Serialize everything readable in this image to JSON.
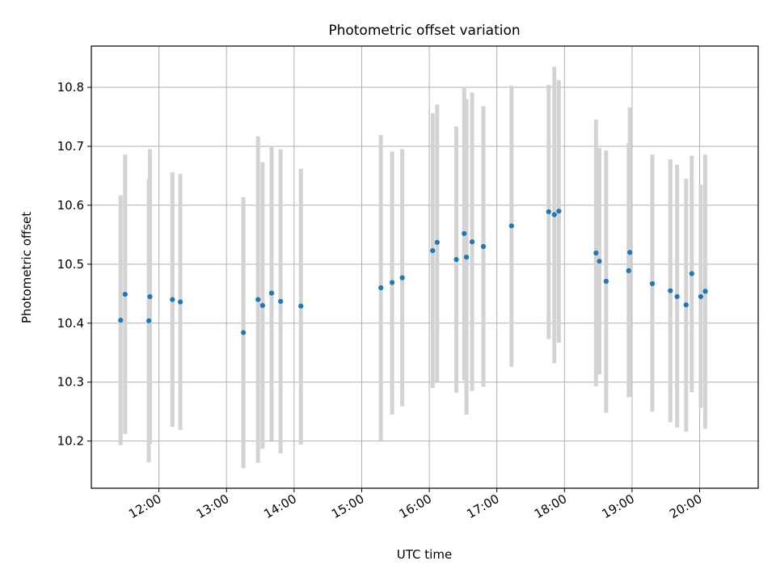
{
  "chart_data": {
    "type": "scatter",
    "title": "Photometric offset variation",
    "xlabel": "UTC time",
    "ylabel": "Photometric offset",
    "xlim": [
      "11:00",
      "20:52"
    ],
    "ylim": [
      10.12,
      10.87
    ],
    "grid": true,
    "colors": {
      "marker": "#1f77b4",
      "errorbar": "#d3d3d3"
    },
    "x_ticks": [
      "12:00",
      "13:00",
      "14:00",
      "15:00",
      "16:00",
      "17:00",
      "18:00",
      "19:00",
      "20:00"
    ],
    "y_ticks": [
      10.2,
      10.3,
      10.4,
      10.5,
      10.6,
      10.7,
      10.8
    ],
    "y_tick_labels": [
      "10.2",
      "10.3",
      "10.4",
      "10.5",
      "10.6",
      "10.7",
      "10.8"
    ],
    "series": [
      {
        "points": [
          {
            "t": "11:26",
            "y": 10.405,
            "lo": 10.193,
            "hi": 10.617
          },
          {
            "t": "11:30",
            "y": 10.449,
            "lo": 10.212,
            "hi": 10.686
          },
          {
            "t": "11:51",
            "y": 10.404,
            "lo": 10.164,
            "hi": 10.644
          },
          {
            "t": "11:52",
            "y": 10.445,
            "lo": 10.195,
            "hi": 10.695
          },
          {
            "t": "12:12",
            "y": 10.44,
            "lo": 10.224,
            "hi": 10.656
          },
          {
            "t": "12:19",
            "y": 10.436,
            "lo": 10.219,
            "hi": 10.653
          },
          {
            "t": "13:15",
            "y": 10.384,
            "lo": 10.154,
            "hi": 10.614
          },
          {
            "t": "13:28",
            "y": 10.44,
            "lo": 10.163,
            "hi": 10.717
          },
          {
            "t": "13:32",
            "y": 10.43,
            "lo": 10.187,
            "hi": 10.673
          },
          {
            "t": "13:40",
            "y": 10.451,
            "lo": 10.201,
            "hi": 10.701
          },
          {
            "t": "13:48",
            "y": 10.437,
            "lo": 10.179,
            "hi": 10.695
          },
          {
            "t": "14:06",
            "y": 10.429,
            "lo": 10.194,
            "hi": 10.662
          },
          {
            "t": "15:17",
            "y": 10.46,
            "lo": 10.201,
            "hi": 10.719
          },
          {
            "t": "15:27",
            "y": 10.469,
            "lo": 10.245,
            "hi": 10.691
          },
          {
            "t": "15:36",
            "y": 10.477,
            "lo": 10.259,
            "hi": 10.695
          },
          {
            "t": "16:03",
            "y": 10.523,
            "lo": 10.29,
            "hi": 10.756
          },
          {
            "t": "16:07",
            "y": 10.537,
            "lo": 10.301,
            "hi": 10.771
          },
          {
            "t": "16:24",
            "y": 10.508,
            "lo": 10.282,
            "hi": 10.734
          },
          {
            "t": "16:31",
            "y": 10.552,
            "lo": 10.303,
            "hi": 10.8
          },
          {
            "t": "16:33",
            "y": 10.512,
            "lo": 10.245,
            "hi": 10.78
          },
          {
            "t": "16:38",
            "y": 10.538,
            "lo": 10.285,
            "hi": 10.791
          },
          {
            "t": "16:48",
            "y": 10.53,
            "lo": 10.292,
            "hi": 10.768
          },
          {
            "t": "17:13",
            "y": 10.565,
            "lo": 10.326,
            "hi": 10.803
          },
          {
            "t": "17:46",
            "y": 10.589,
            "lo": 10.373,
            "hi": 10.804
          },
          {
            "t": "17:51",
            "y": 10.584,
            "lo": 10.332,
            "hi": 10.835
          },
          {
            "t": "17:55",
            "y": 10.59,
            "lo": 10.367,
            "hi": 10.812
          },
          {
            "t": "18:28",
            "y": 10.519,
            "lo": 10.293,
            "hi": 10.745
          },
          {
            "t": "18:31",
            "y": 10.505,
            "lo": 10.313,
            "hi": 10.697
          },
          {
            "t": "18:37",
            "y": 10.471,
            "lo": 10.248,
            "hi": 10.693
          },
          {
            "t": "18:57",
            "y": 10.489,
            "lo": 10.274,
            "hi": 10.705
          },
          {
            "t": "18:58",
            "y": 10.52,
            "lo": 10.275,
            "hi": 10.766
          },
          {
            "t": "19:18",
            "y": 10.467,
            "lo": 10.25,
            "hi": 10.686
          },
          {
            "t": "19:34",
            "y": 10.455,
            "lo": 10.232,
            "hi": 10.678
          },
          {
            "t": "19:40",
            "y": 10.445,
            "lo": 10.223,
            "hi": 10.669
          },
          {
            "t": "19:48",
            "y": 10.431,
            "lo": 10.216,
            "hi": 10.645
          },
          {
            "t": "19:53",
            "y": 10.484,
            "lo": 10.283,
            "hi": 10.684
          },
          {
            "t": "20:01",
            "y": 10.445,
            "lo": 10.256,
            "hi": 10.635
          },
          {
            "t": "20:05",
            "y": 10.454,
            "lo": 10.221,
            "hi": 10.686
          }
        ]
      }
    ]
  }
}
